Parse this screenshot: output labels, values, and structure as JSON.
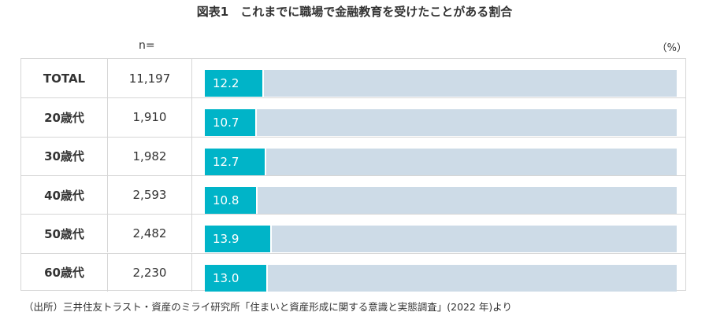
{
  "chart_data": {
    "type": "bar",
    "title": "図表1　これまでに職場で金融教育を受けたことがある割合",
    "n_label": "n=",
    "unit": "（%）",
    "xlim": [
      0,
      100
    ],
    "categories": [
      "TOTAL",
      "20歳代",
      "30歳代",
      "40歳代",
      "50歳代",
      "60歳代"
    ],
    "n": [
      "11,197",
      "1,910",
      "1,982",
      "2,593",
      "2,482",
      "2,230"
    ],
    "values": [
      12.2,
      10.7,
      12.7,
      10.8,
      13.9,
      13.0
    ],
    "value_labels": [
      "12.2",
      "10.7",
      "12.7",
      "10.8",
      "13.9",
      "13.0"
    ],
    "colors": {
      "bar": "#00b4c8",
      "track": "#cddbe7"
    }
  },
  "source": "（出所）三井住友トラスト・資産のミライ研究所「住まいと資産形成に関する意識と実態調査」(2022 年)より"
}
